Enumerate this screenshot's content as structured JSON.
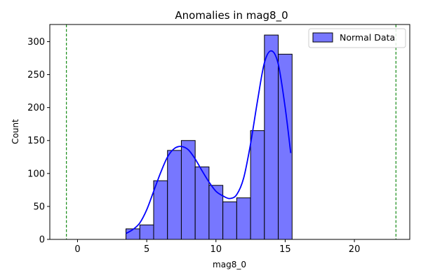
{
  "chart_data": {
    "type": "bar",
    "title": "Anomalies in mag8_0",
    "xlabel": "mag8_0",
    "ylabel": "Count",
    "xlim": [
      -2.0,
      24.0
    ],
    "ylim": [
      0,
      326
    ],
    "xticks": [
      0,
      5,
      10,
      15,
      20
    ],
    "yticks": [
      0,
      50,
      100,
      150,
      200,
      250,
      300
    ],
    "grid": false,
    "legend": {
      "position": "top-right",
      "entries": [
        "Normal Data"
      ]
    },
    "series": [
      {
        "name": "Normal Data",
        "color": "#7777ff",
        "edge_color": "#000000",
        "bin_edges": [
          3.5,
          4.5,
          5.5,
          6.5,
          7.5,
          8.5,
          9.5,
          10.5,
          11.5,
          12.5,
          13.5,
          14.5,
          15.5
        ],
        "values": [
          16,
          22,
          89,
          135,
          150,
          110,
          82,
          57,
          63,
          165,
          310,
          281
        ]
      }
    ],
    "kde": {
      "color": "#0000ff",
      "x": [
        3.5,
        4.0,
        4.5,
        5.0,
        5.5,
        6.0,
        6.5,
        7.0,
        7.5,
        8.0,
        8.5,
        9.0,
        9.5,
        10.0,
        10.5,
        11.0,
        11.5,
        12.0,
        12.5,
        13.0,
        13.5,
        14.0,
        14.5,
        15.0,
        15.4
      ],
      "y": [
        9,
        15,
        25,
        45,
        73,
        101,
        125,
        138,
        141,
        136,
        122,
        104,
        87,
        73,
        66,
        62,
        68,
        93,
        145,
        210,
        268,
        286,
        266,
        200,
        131
      ]
    },
    "reference_lines": [
      {
        "x": -0.8,
        "color": "#008000",
        "style": "dashed"
      },
      {
        "x": 23.0,
        "color": "#008000",
        "style": "dashed"
      }
    ]
  }
}
